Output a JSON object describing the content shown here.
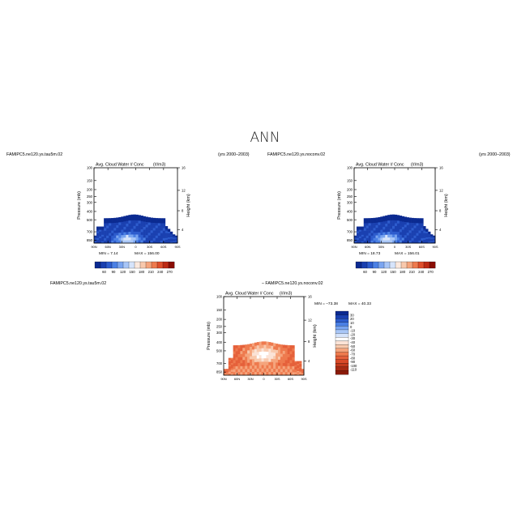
{
  "page_title": "ANN",
  "colorbar_abs": {
    "colors": [
      "#0b2a91",
      "#1a40b0",
      "#2d5ccd",
      "#4b80e4",
      "#7aa5f0",
      "#a8c6f7",
      "#d6e4fb",
      "#fbe9de",
      "#f8c9ad",
      "#f5a47c",
      "#ee7a4e",
      "#de4e2c",
      "#bd2a14",
      "#8a0d04"
    ],
    "labels": [
      "60",
      "90",
      "120",
      "150",
      "180",
      "210",
      "240",
      "270"
    ]
  },
  "colorbar_diff": {
    "colors": [
      "#0b2a91",
      "#1a40b0",
      "#2d5ccd",
      "#4b80e4",
      "#7aa5f0",
      "#a8c6f7",
      "#d6e4fb",
      "#ffffff",
      "#fbe3d6",
      "#f8c9ad",
      "#f5a47c",
      "#ee7a4e",
      "#e5603a",
      "#d94a28",
      "#c23a1c",
      "#a82a12",
      "#8a1a08"
    ],
    "labels": [
      "30",
      "20",
      "10",
      "0",
      "-10",
      "-20",
      "-30",
      "-40",
      "-50",
      "-60",
      "-70",
      "-80",
      "-90",
      "-100",
      "-110"
    ]
  },
  "chart_data": [
    {
      "type": "heatmap",
      "panel": "left",
      "case_label": "FAMIPC5.ne120.ys.tau5m.02",
      "years_label": "(yrs 2000–2003)",
      "title": "Avg. Cloud Water # Conc",
      "units_label": "(#/m3)",
      "ylabel": "Pressure (mb)",
      "y2label": "Height (km)",
      "x_ticks": [
        "90N",
        "60N",
        "30N",
        "0",
        "30S",
        "60S",
        "90S"
      ],
      "y_ticks": [
        "100",
        "150",
        "200",
        "250",
        "300",
        "400",
        "500",
        "700",
        "850"
      ],
      "y2_ticks": [
        "16",
        "12",
        "8",
        "4"
      ],
      "min_label": "MIN =   7.14",
      "max_label": "MAX = 156.00",
      "min": 7.14,
      "max": 156.0
    },
    {
      "type": "heatmap",
      "panel": "right",
      "case_label": "FAMIPC5.ne120.ys.noconv.02",
      "years_label": "(yrs 2000–2003)",
      "title": "Avg. Cloud Water # Conc",
      "units_label": "(#/m3)",
      "ylabel": "Pressure (mb)",
      "y2label": "Height (km)",
      "x_ticks": [
        "90N",
        "60N",
        "30N",
        "0",
        "30S",
        "60S",
        "90S"
      ],
      "y_ticks": [
        "100",
        "150",
        "200",
        "250",
        "300",
        "400",
        "500",
        "700",
        "850"
      ],
      "y2_ticks": [
        "16",
        "12",
        "8",
        "4"
      ],
      "min_label": "MIN =  18.73",
      "max_label": "MAX = 156.01",
      "min": 18.73,
      "max": 156.01
    },
    {
      "type": "heatmap",
      "panel": "difference",
      "case_label": "FAMIPC5.ne120.ys.tau5m.02",
      "diff_label": "– FAMIPC5.ne120.ys.noconv.02",
      "title": "Avg. Cloud Water # Conc",
      "units_label": "(#/m3)",
      "ylabel": "Pressure (mb)",
      "y2label": "Height (km)",
      "x_ticks": [
        "90N",
        "60N",
        "30N",
        "0",
        "30S",
        "60S",
        "90S"
      ],
      "y_ticks": [
        "100",
        "150",
        "200",
        "250",
        "300",
        "400",
        "500",
        "700",
        "850"
      ],
      "y2_ticks": [
        "16",
        "12",
        "8",
        "4"
      ],
      "min_label": "MIN = –73.38",
      "max_label": "MAX =  40.33",
      "min": -73.38,
      "max": 40.33
    }
  ]
}
